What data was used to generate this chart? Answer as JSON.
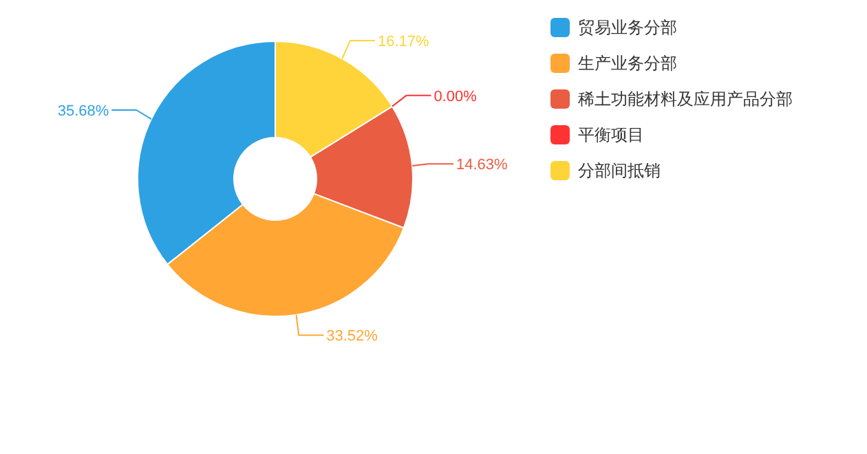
{
  "chart_data": {
    "type": "donut",
    "categories": [
      "贸易业务分部",
      "生产业务分部",
      "稀土功能材料及应用产品分部",
      "平衡项目",
      "分部间抵销"
    ],
    "values": [
      35.68,
      33.52,
      14.63,
      0,
      16.17
    ],
    "colors": [
      "#2ea1e2",
      "#ffa634",
      "#e95d42",
      "#ff3333",
      "#ffd43b"
    ],
    "value_labels": [
      "35.68%",
      "33.52%",
      "14.63%",
      "0.00%",
      "16.17%"
    ],
    "legend": "right"
  }
}
